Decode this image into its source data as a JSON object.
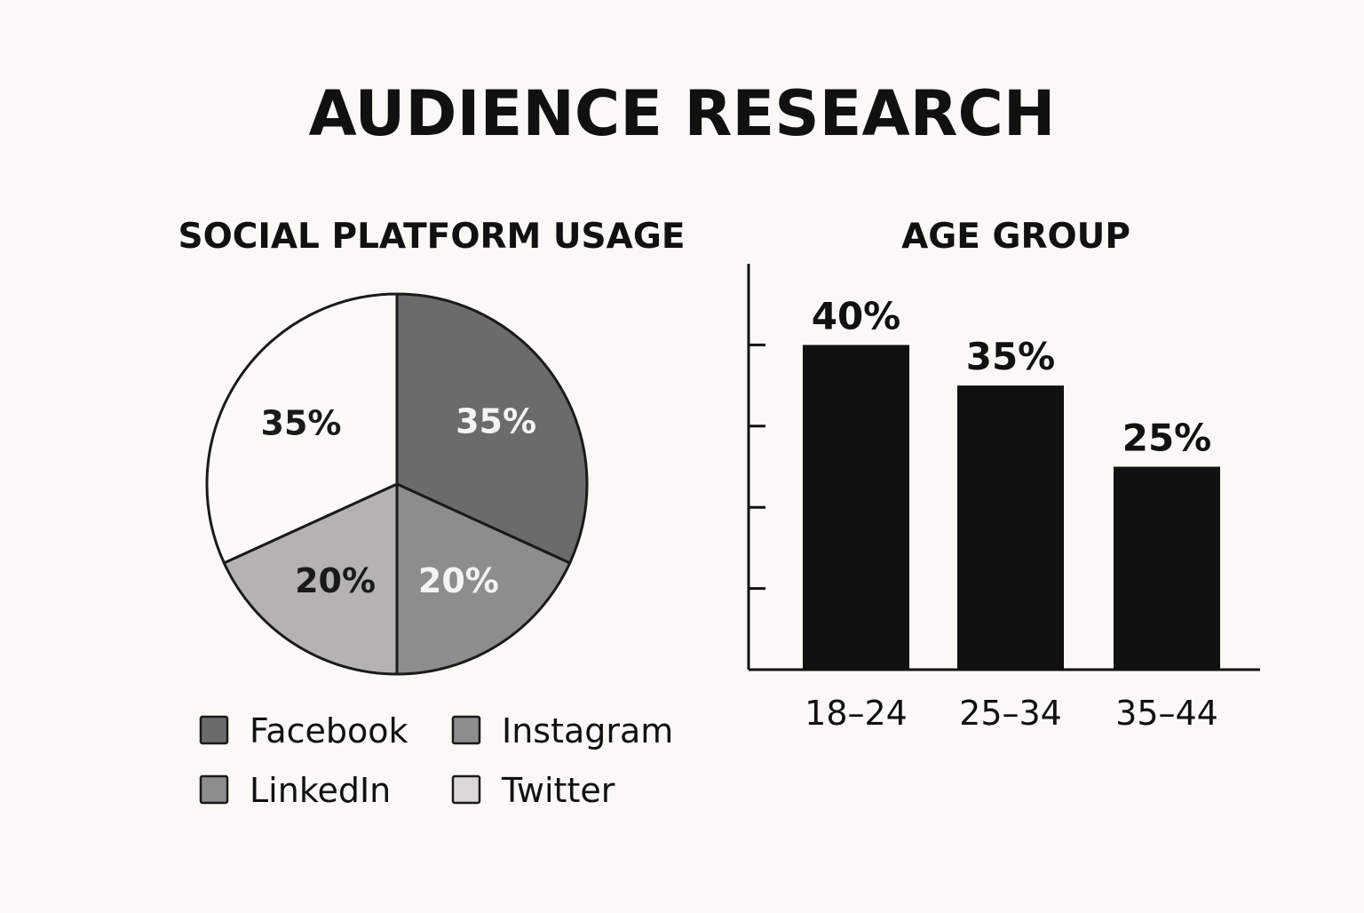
{
  "title": "AUDIENCE RESEARCH",
  "chart_data": [
    {
      "type": "pie",
      "title": "SOCIAL PLATFORM USAGE",
      "slices": [
        {
          "label": "Facebook",
          "value": 35,
          "display": "35%",
          "color": "#6b6b6b",
          "label_color": "#f4f4f4"
        },
        {
          "label": "Instagram",
          "value": 20,
          "display": "20%",
          "color": "#8d8d8d",
          "label_color": "#f4f4f4"
        },
        {
          "label": "LinkedIn",
          "value": 20,
          "display": "20%",
          "color": "#b4b3b1",
          "label_color": "#1a1a1a"
        },
        {
          "label": "Twitter",
          "value": 35,
          "display": "35%",
          "color": "#fbfaf7",
          "label_color": "#1a1a1a"
        }
      ],
      "legend": [
        {
          "label": "Facebook",
          "color": "#6b6b6b"
        },
        {
          "label": "Instagram",
          "color": "#8d8d8d"
        },
        {
          "label": "LinkedIn",
          "color": "#8d8d8d"
        },
        {
          "label": "Twitter",
          "color": "#d9d8d5"
        }
      ],
      "legend_position": "bottom"
    },
    {
      "type": "bar",
      "title": "AGE GROUP",
      "categories": [
        "18–24",
        "25–34",
        "35–44"
      ],
      "values": [
        40,
        35,
        25
      ],
      "value_labels": [
        "40%",
        "35%",
        "25%"
      ],
      "color": "#111111",
      "ylim": [
        0,
        50
      ],
      "yticks": [
        10,
        20,
        30,
        40
      ],
      "ytick_labels_shown": false,
      "grid": false
    }
  ]
}
